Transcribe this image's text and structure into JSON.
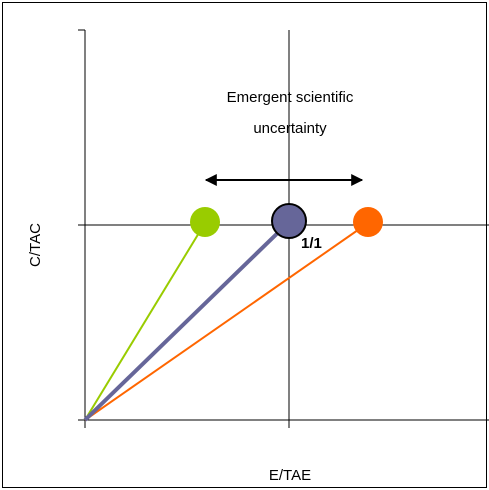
{
  "axes": {
    "y_label": "C/TAC",
    "x_label": "E/TAE"
  },
  "annotation": {
    "lines": [
      "Emergent scientific",
      "uncertainty"
    ]
  },
  "point_label": "1/1"
}
